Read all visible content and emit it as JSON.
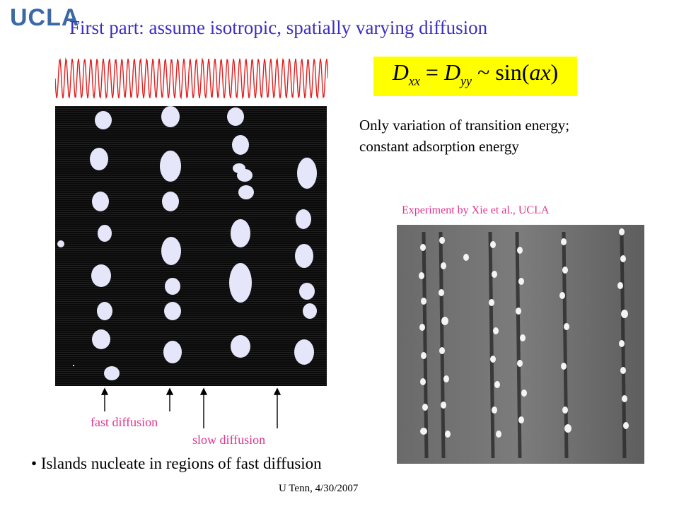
{
  "logo": {
    "text": "UCLA",
    "color": "#3b69a5"
  },
  "slide": {
    "title": "First part: assume isotropic, spatially varying diffusion",
    "formula": {
      "lhs_symbol": "D",
      "lhs_subscript": "xx",
      "equals": "=",
      "rhs_symbol": "D",
      "rhs_subscript": "yy",
      "relation": "~",
      "function": "sin(",
      "argument": "ax",
      "close": ")"
    },
    "note_line1": "Only variation of transition energy;",
    "note_line2": "constant adsorption energy",
    "experiment_caption": "Experiment by  Xie et al., UCLA",
    "label_fast": "fast diffusion",
    "label_slow": "slow diffusion",
    "bullet": "Islands nucleate in regions of fast diffusion",
    "footer": "U Tenn, 4/30/2007"
  },
  "colors": {
    "title": "#3b2fbf",
    "accent_pink": "#e0358e",
    "formula_background": "#ffff00",
    "wave": "#e02020",
    "simulation_background": "#0b0b0b",
    "island_fill": "#e6e6fa"
  },
  "icons": [
    "up-arrow-icon"
  ]
}
